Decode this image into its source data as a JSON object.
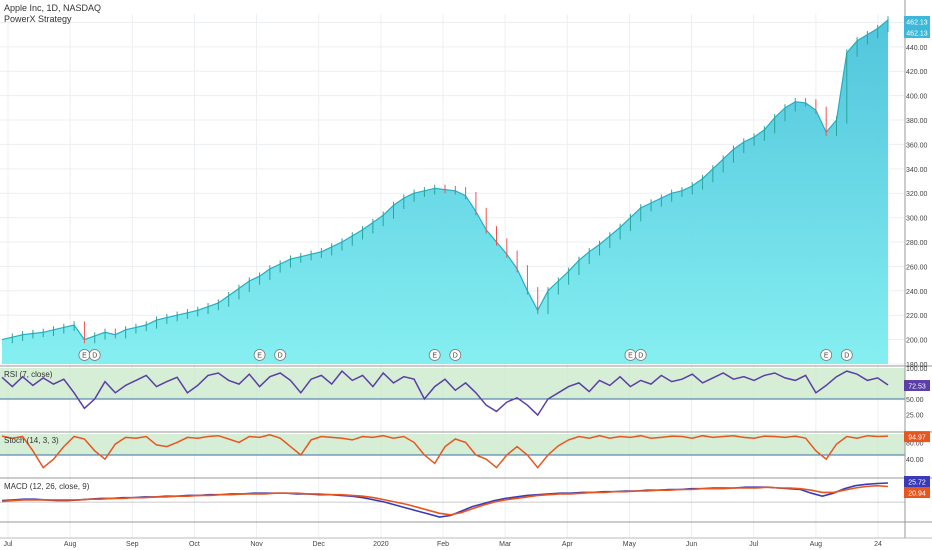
{
  "header": {
    "symbol": "Apple Inc, 1D, NASDAQ",
    "strategy": "PowerX Strategy"
  },
  "colors": {
    "area_top": "#35c6e0",
    "area_bottom": "#7feeef",
    "line": "#23aec8",
    "candle_up": "#26a69a",
    "candle_down": "#ef5350",
    "rsi": "#5b3fa6",
    "stoch": "#e8561f",
    "band_fill": "#cce9cc",
    "macd": "#3a3ab8",
    "signal": "#e8561f",
    "price_badge": "#3db8d8"
  },
  "chart_data": [
    {
      "type": "area",
      "name": "price",
      "x_labels": [
        "Jul",
        "Aug",
        "Sep",
        "Oct",
        "Nov",
        "Dec",
        "2020",
        "Feb",
        "Mar",
        "Apr",
        "May",
        "Jun",
        "Jul",
        "Aug",
        "24"
      ],
      "x": [
        0,
        1,
        2,
        3,
        4,
        5,
        6,
        7,
        8,
        9,
        10,
        11,
        12,
        13,
        14,
        15,
        16,
        17,
        18,
        19,
        20,
        21,
        22,
        23,
        24,
        25,
        26,
        27,
        28,
        29,
        30,
        31,
        32,
        33,
        34,
        35,
        36,
        37,
        38,
        39,
        40,
        41,
        42,
        43,
        44,
        45,
        46,
        47,
        48,
        49,
        50,
        51,
        52,
        53,
        54,
        55,
        56,
        57,
        58,
        59,
        60,
        61,
        62,
        63,
        64,
        65,
        66,
        67,
        68,
        69,
        70,
        71,
        72,
        73,
        74,
        75,
        76,
        77,
        78,
        79,
        80,
        81,
        82,
        83,
        84,
        85,
        86
      ],
      "values": [
        200,
        202,
        204,
        205,
        206,
        208,
        210,
        212,
        200,
        203,
        206,
        204,
        208,
        210,
        212,
        216,
        218,
        220,
        222,
        224,
        227,
        230,
        236,
        242,
        248,
        252,
        258,
        262,
        266,
        268,
        270,
        272,
        276,
        280,
        285,
        290,
        296,
        302,
        310,
        316,
        320,
        322,
        324,
        323,
        322,
        318,
        305,
        290,
        280,
        270,
        258,
        240,
        224,
        240,
        248,
        256,
        265,
        272,
        278,
        285,
        292,
        300,
        308,
        312,
        316,
        320,
        322,
        326,
        332,
        340,
        348,
        356,
        362,
        366,
        372,
        382,
        390,
        395,
        394,
        388,
        370,
        380,
        435,
        445,
        450,
        455,
        462
      ],
      "ylim": [
        180,
        462
      ],
      "y_ticks": [
        180,
        200,
        220,
        240,
        260,
        280,
        300,
        320,
        340,
        360,
        380,
        400,
        420,
        440,
        460
      ],
      "events": [
        {
          "label": "E",
          "x": 8
        },
        {
          "label": "D",
          "x": 9
        },
        {
          "label": "E",
          "x": 25
        },
        {
          "label": "D",
          "x": 27
        },
        {
          "label": "E",
          "x": 42
        },
        {
          "label": "D",
          "x": 44
        },
        {
          "label": "E",
          "x": 61
        },
        {
          "label": "D",
          "x": 62
        },
        {
          "label": "E",
          "x": 80
        },
        {
          "label": "D",
          "x": 82
        }
      ],
      "last_values": [
        "462.13",
        "462.13"
      ]
    },
    {
      "type": "line",
      "name": "RSI (7, close)",
      "values": [
        85,
        70,
        86,
        72,
        84,
        74,
        82,
        60,
        35,
        50,
        78,
        60,
        72,
        80,
        88,
        70,
        78,
        85,
        60,
        72,
        88,
        92,
        80,
        74,
        90,
        70,
        86,
        92,
        80,
        60,
        82,
        88,
        74,
        95,
        80,
        88,
        70,
        92,
        76,
        86,
        82,
        50,
        70,
        82,
        64,
        76,
        60,
        40,
        30,
        45,
        52,
        40,
        24,
        50,
        60,
        70,
        76,
        62,
        80,
        72,
        86,
        70,
        80,
        74,
        88,
        78,
        82,
        90,
        76,
        84,
        92,
        82,
        86,
        80,
        88,
        92,
        84,
        80,
        88,
        60,
        72,
        86,
        95,
        90,
        80,
        84,
        72.53
      ],
      "ylim": [
        0,
        100
      ],
      "y_ticks": [
        25,
        50,
        75,
        100
      ],
      "last_value": "72.53",
      "band": [
        50,
        100
      ]
    },
    {
      "type": "line",
      "name": "Stoch (14, 3, 3)",
      "values": [
        95,
        90,
        94,
        60,
        20,
        40,
        70,
        94,
        88,
        60,
        40,
        76,
        92,
        90,
        94,
        74,
        70,
        80,
        92,
        90,
        94,
        96,
        88,
        80,
        94,
        92,
        98,
        90,
        70,
        50,
        86,
        94,
        92,
        90,
        86,
        94,
        92,
        96,
        90,
        94,
        80,
        50,
        30,
        70,
        88,
        80,
        50,
        40,
        20,
        50,
        70,
        50,
        20,
        50,
        72,
        86,
        94,
        90,
        96,
        90,
        94,
        92,
        96,
        90,
        92,
        95,
        94,
        90,
        96,
        92,
        94,
        96,
        92,
        90,
        95,
        94,
        92,
        95,
        90,
        60,
        40,
        76,
        94,
        90,
        96,
        94,
        94.97
      ],
      "ylim": [
        0,
        100
      ],
      "y_ticks": [
        40,
        80
      ],
      "last_value": "94.97",
      "band": [
        50,
        100
      ]
    },
    {
      "type": "line",
      "name": "MACD (12, 26, close, 9)",
      "series": [
        {
          "name": "MACD",
          "values": [
            2,
            3,
            4,
            4,
            3,
            2,
            2,
            3,
            4,
            5,
            5,
            6,
            6,
            7,
            7,
            8,
            8,
            9,
            9,
            10,
            10,
            11,
            11,
            12,
            12,
            12,
            12,
            11,
            11,
            10,
            10,
            9,
            8,
            6,
            3,
            0,
            -4,
            -8,
            -12,
            -16,
            -20,
            -18,
            -12,
            -6,
            -2,
            2,
            5,
            7,
            9,
            10,
            11,
            12,
            12,
            13,
            13,
            14,
            14,
            15,
            15,
            16,
            16,
            17,
            17,
            18,
            18,
            19,
            19,
            19,
            20,
            20,
            20,
            19,
            18,
            17,
            12,
            8,
            12,
            18,
            22,
            24,
            25,
            25.72
          ]
        },
        {
          "name": "Signal",
          "values": [
            1,
            2,
            3,
            3,
            3,
            3,
            3,
            3,
            4,
            4,
            5,
            5,
            6,
            6,
            7,
            7,
            8,
            8,
            9,
            9,
            10,
            10,
            11,
            11,
            11,
            12,
            12,
            12,
            11,
            11,
            10,
            10,
            9,
            8,
            6,
            3,
            0,
            -3,
            -7,
            -11,
            -15,
            -17,
            -14,
            -9,
            -4,
            0,
            3,
            5,
            7,
            9,
            10,
            11,
            11,
            12,
            13,
            13,
            14,
            14,
            15,
            15,
            16,
            16,
            17,
            17,
            18,
            18,
            18,
            19,
            19,
            19,
            20,
            19,
            19,
            18,
            16,
            13,
            13,
            16,
            19,
            21,
            22,
            20.94
          ]
        }
      ],
      "last_values": [
        "25.72",
        "20.94"
      ]
    }
  ]
}
